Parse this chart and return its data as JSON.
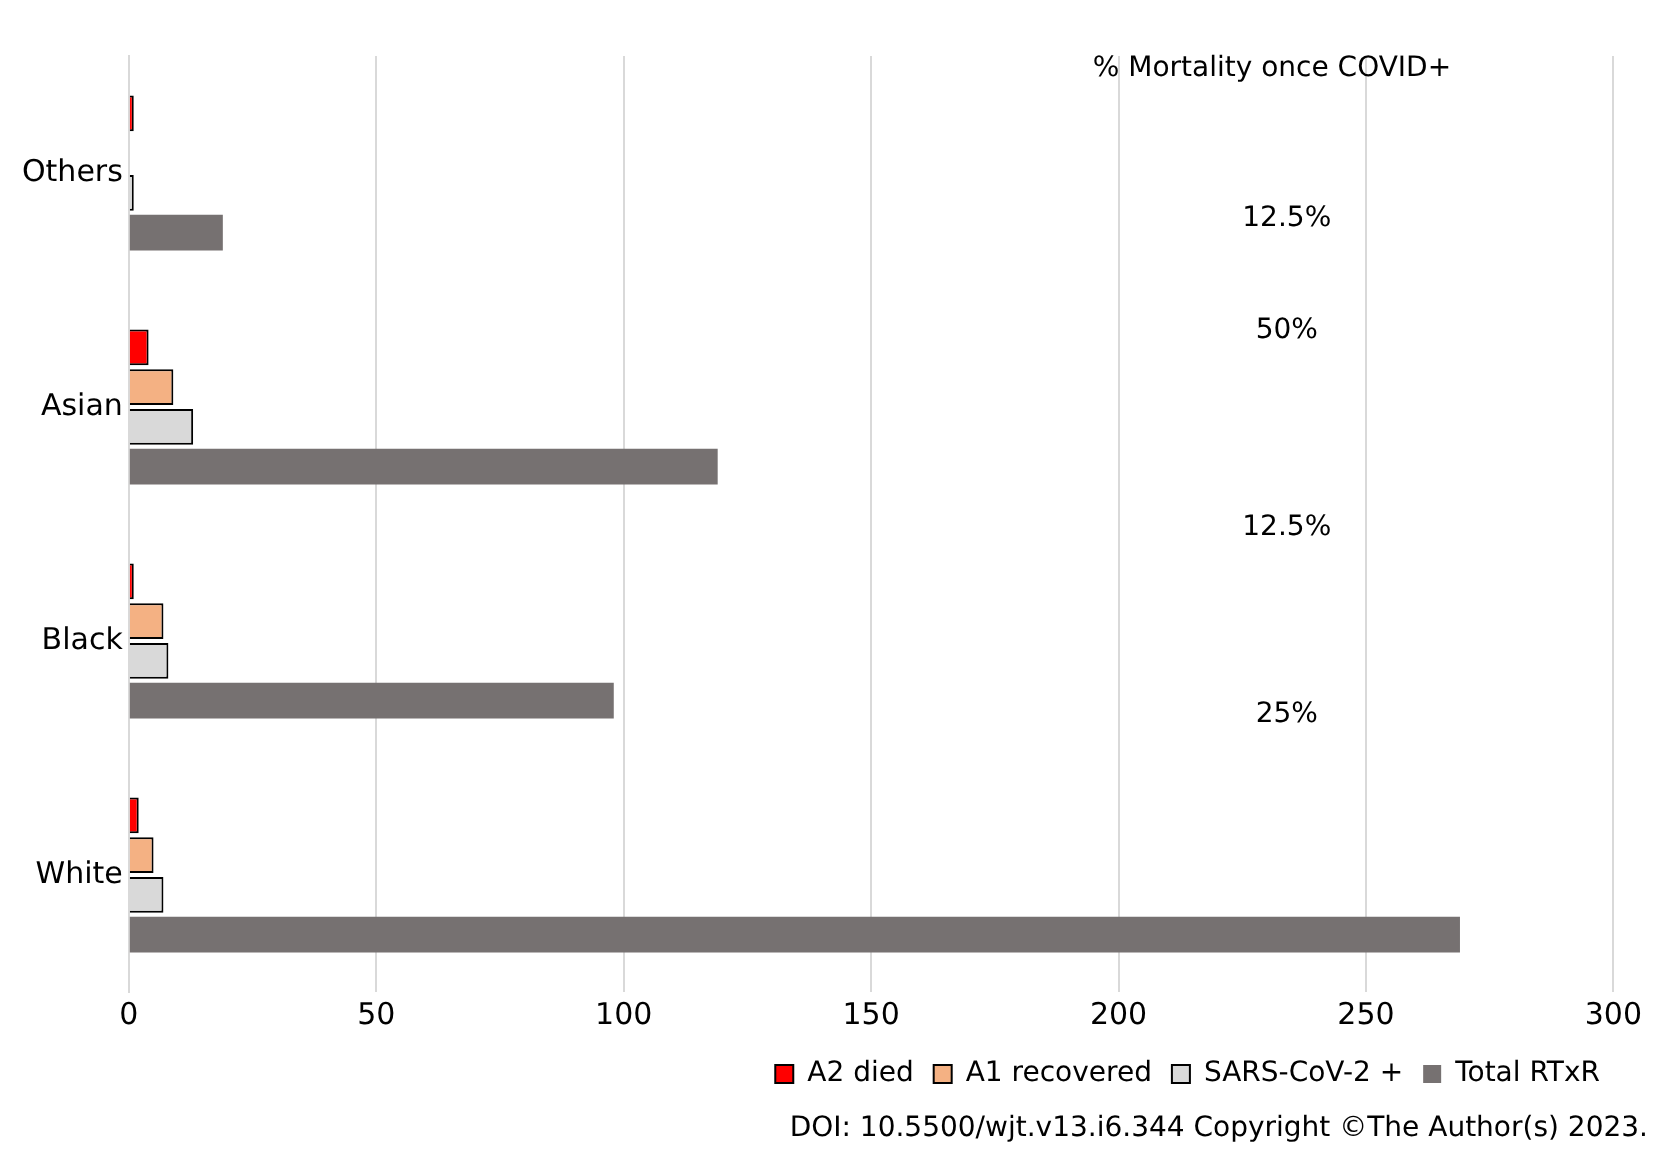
{
  "chart_data": {
    "type": "bar",
    "orientation": "horizontal",
    "categories": [
      "Others",
      "Asian",
      "Black",
      "White"
    ],
    "series": [
      {
        "name": "A2 died",
        "color": "#ff0000",
        "values": [
          1,
          4,
          1,
          2
        ]
      },
      {
        "name": "A1 recovered",
        "color": "#f4b183",
        "values": [
          0,
          9,
          7,
          5
        ]
      },
      {
        "name": "SARS-CoV-2 +",
        "color": "#d9d9d9",
        "values": [
          1,
          13,
          8,
          7
        ]
      },
      {
        "name": "Total RTxR",
        "color": "#767171",
        "values": [
          19,
          119,
          98,
          269
        ]
      }
    ],
    "xlim": [
      0,
      300
    ],
    "xticks": [
      0,
      50,
      100,
      150,
      200,
      250,
      300
    ],
    "grid": "x",
    "legend": "bottom",
    "annotations": [
      "% Mortality once COVID+",
      "12.5%",
      "50%",
      "12.5%",
      "25%",
      "DOI: 10.5500/wjt.v13.i6.344 Copyright ©The Author(s) 2023."
    ]
  }
}
